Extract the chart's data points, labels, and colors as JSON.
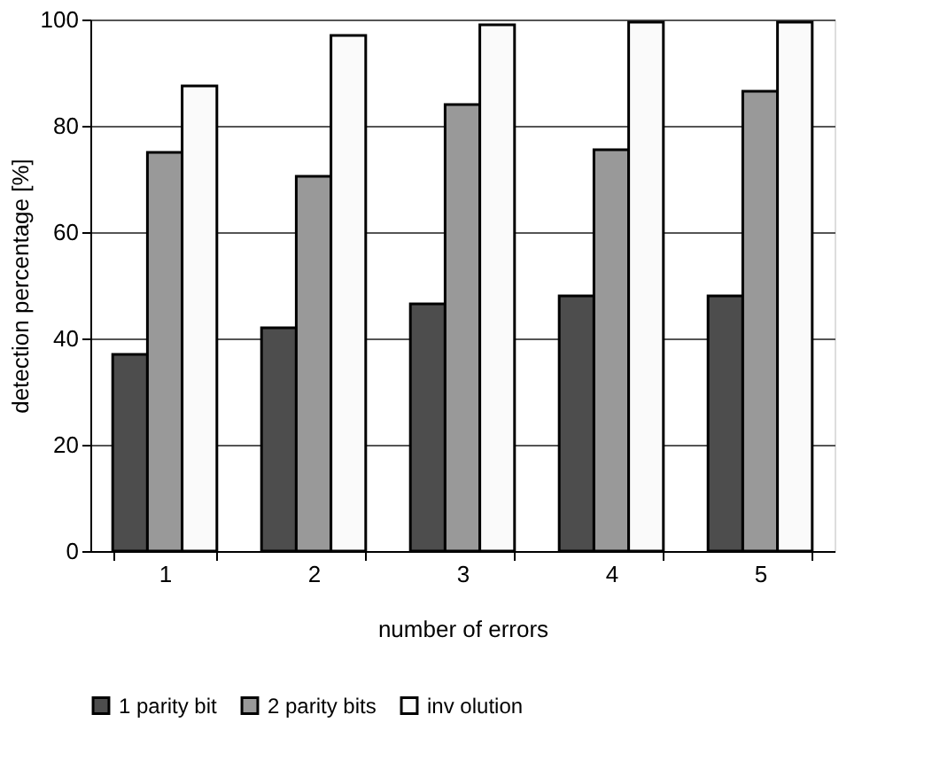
{
  "chart_data": {
    "type": "bar",
    "xlabel": "number of errors",
    "ylabel": "detection percentage [%]",
    "categories": [
      "1",
      "2",
      "3",
      "4",
      "5"
    ],
    "series": [
      {
        "name": "1 parity bit",
        "color": "#4d4d4d",
        "values": [
          37,
          42,
          46.5,
          48,
          48
        ]
      },
      {
        "name": "2 parity bits",
        "color": "#999999",
        "values": [
          75,
          70.5,
          84,
          75.5,
          86.5
        ]
      },
      {
        "name": "inv olution",
        "color": "#fafafa",
        "values": [
          87.5,
          97,
          99,
          99.5,
          99.5
        ]
      }
    ],
    "ylim": [
      0,
      100
    ],
    "yticks": [
      0,
      20,
      40,
      60,
      80,
      100
    ],
    "grid": "y",
    "legend": "bottom"
  }
}
